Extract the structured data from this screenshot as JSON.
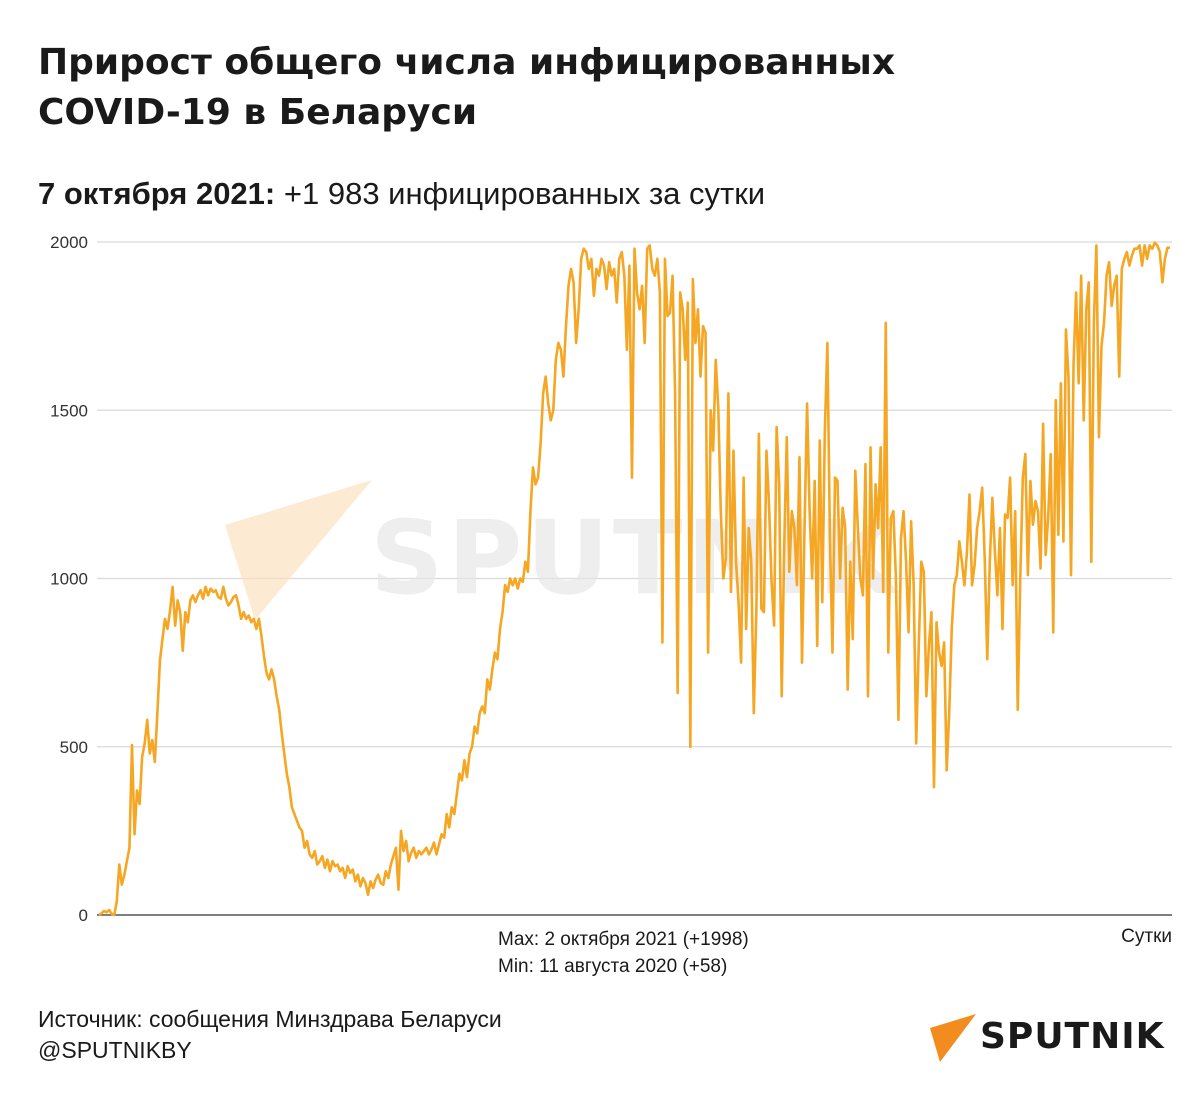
{
  "header": {
    "title_line1": "Прирост общего числа инфицированных",
    "title_line2": "COVID-19 в Беларуси",
    "subtitle_date": "7 октября 2021:",
    "subtitle_rest": "+1 983 инфицированных за сутки"
  },
  "watermark": {
    "text": "SPUTNIK"
  },
  "chart_data": {
    "type": "line",
    "series": [
      {
        "values": [
          0,
          5,
          12,
          8,
          15,
          3,
          0,
          40,
          150,
          90,
          120,
          160,
          200,
          505,
          240,
          370,
          330,
          470,
          510,
          580,
          480,
          520,
          455,
          600,
          755,
          820,
          880,
          850,
          905,
          975,
          860,
          935,
          900,
          785,
          900,
          870,
          935,
          950,
          930,
          950,
          965,
          940,
          975,
          950,
          970,
          960,
          965,
          945,
          940,
          975,
          940,
          920,
          930,
          945,
          950,
          920,
          880,
          900,
          880,
          890,
          870,
          880,
          850,
          880,
          830,
          770,
          720,
          700,
          730,
          700,
          650,
          610,
          540,
          480,
          420,
          380,
          320,
          300,
          280,
          260,
          250,
          200,
          220,
          180,
          170,
          190,
          150,
          160,
          175,
          140,
          165,
          130,
          160,
          145,
          150,
          130,
          140,
          110,
          145,
          125,
          135,
          100,
          120,
          85,
          110,
          95,
          60,
          100,
          80,
          105,
          120,
          95,
          90,
          130,
          110,
          150,
          175,
          200,
          75,
          250,
          190,
          220,
          160,
          185,
          200,
          170,
          190,
          180,
          190,
          200,
          180,
          195,
          215,
          180,
          210,
          240,
          230,
          300,
          260,
          320,
          300,
          360,
          420,
          400,
          460,
          410,
          480,
          500,
          560,
          540,
          600,
          620,
          600,
          700,
          670,
          730,
          780,
          760,
          850,
          900,
          980,
          960,
          1000,
          980,
          1000,
          970,
          1000,
          990,
          1050,
          1020,
          1200,
          1330,
          1280,
          1300,
          1400,
          1550,
          1600,
          1520,
          1470,
          1500,
          1650,
          1700,
          1680,
          1600,
          1750,
          1870,
          1920,
          1880,
          1700,
          1800,
          1950,
          1980,
          1970,
          1920,
          1950,
          1840,
          1920,
          1900,
          1950,
          1930,
          1860,
          1940,
          1900,
          1920,
          1820,
          1950,
          1970,
          1900,
          1680,
          1930,
          1300,
          1980,
          1850,
          1800,
          1870,
          1700,
          1980,
          1990,
          1920,
          1900,
          1950,
          1850,
          810,
          1950,
          1780,
          1790,
          1900,
          1550,
          660,
          1850,
          1800,
          1650,
          1820,
          500,
          1890,
          1700,
          1800,
          1600,
          1750,
          1730,
          780,
          1500,
          1380,
          1650,
          1510,
          1200,
          1000,
          1060,
          1550,
          960,
          1380,
          1050,
          930,
          750,
          1300,
          850,
          1150,
          1050,
          600,
          900,
          1430,
          910,
          900,
          1380,
          1220,
          990,
          860,
          1450,
          1280,
          650,
          1100,
          1420,
          1020,
          1200,
          1150,
          980,
          1360,
          750,
          1150,
          1520,
          1200,
          1000,
          1290,
          800,
          1410,
          930,
          1440,
          1700,
          1120,
          780,
          1300,
          1290,
          1000,
          1210,
          1150,
          670,
          1050,
          820,
          1320,
          1150,
          1000,
          950,
          1340,
          650,
          1390,
          1000,
          1280,
          1150,
          1390,
          960,
          1760,
          780,
          1180,
          1200,
          1000,
          580,
          1120,
          1200,
          1050,
          840,
          1170,
          980,
          510,
          800,
          1050,
          1020,
          650,
          800,
          900,
          380,
          870,
          780,
          740,
          810,
          430,
          600,
          850,
          980,
          1010,
          1110,
          1050,
          980,
          1080,
          1250,
          980,
          1040,
          1150,
          1200,
          1270,
          1060,
          760,
          1050,
          1240,
          1080,
          950,
          1150,
          850,
          1190,
          1180,
          1300,
          980,
          1200,
          610,
          1000,
          1300,
          1370,
          1010,
          1290,
          1160,
          1230,
          1200,
          1030,
          1460,
          1070,
          1180,
          1370,
          840,
          1530,
          1130,
          1580,
          1110,
          1740,
          1600,
          1010,
          1640,
          1850,
          1580,
          1900,
          1470,
          1800,
          1880,
          1050,
          1760,
          1990,
          1420,
          1690,
          1760,
          1900,
          1940,
          1810,
          1870,
          1900,
          1600,
          1920,
          1950,
          1970,
          1930,
          1960,
          1980,
          1980,
          1990,
          1930,
          1990,
          1950,
          1990,
          1980,
          1998,
          1990,
          1970,
          1880,
          1950,
          1983,
          1983
        ]
      }
    ],
    "ylim": [
      0,
      2000
    ],
    "yticks": [
      "0",
      "500",
      "1000",
      "1500",
      "2000"
    ],
    "grid": true,
    "line_color": "#f5a623",
    "grid_color": "#d9d9d9",
    "annotation_max": "Max: 2 октября 2021 (+1998)",
    "annotation_min": "Min: 11 августа 2020 (+58)",
    "xlabel": "Сутки"
  },
  "footer": {
    "source": "Источник: сообщения Минздрава Беларуси",
    "handle": "@SPUTNIKBY",
    "brand": "SPUTNIK",
    "brand_color": "#f28c1e"
  }
}
